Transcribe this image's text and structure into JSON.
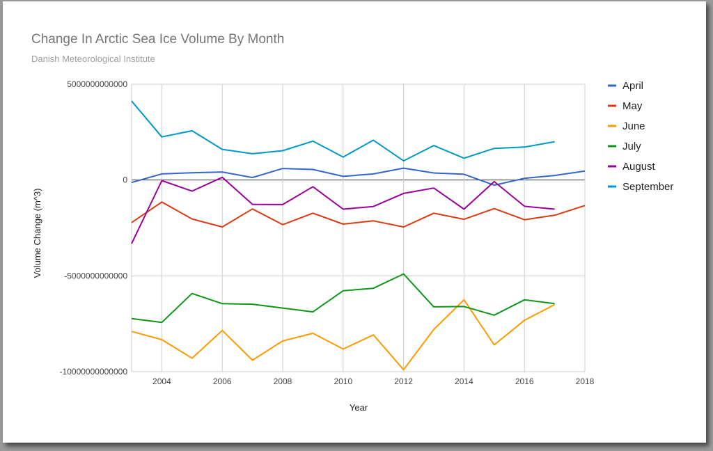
{
  "chart_data": {
    "type": "line",
    "title": "Change In Arctic Sea Ice Volume By Month",
    "subtitle": "Danish Meteorological Institute",
    "xlabel": "Year",
    "ylabel": "Volume Change (m^3)",
    "xlim": [
      2003,
      2018
    ],
    "ylim": [
      -10000000000000,
      5000000000000
    ],
    "xticks": [
      2004,
      2006,
      2008,
      2010,
      2012,
      2014,
      2016,
      2018
    ],
    "yticks": [
      {
        "value": 5000000000000,
        "label": "5000000000000"
      },
      {
        "value": 0,
        "label": "0"
      },
      {
        "value": -5000000000000,
        "label": "-5000000000000"
      },
      {
        "value": -10000000000000,
        "label": "-10000000000000"
      }
    ],
    "grid": true,
    "zero_line": true,
    "legend_position": "right",
    "series": [
      {
        "name": "April",
        "color": "#3366cc",
        "x": [
          2003,
          2004,
          2005,
          2006,
          2007,
          2008,
          2009,
          2010,
          2011,
          2012,
          2013,
          2014,
          2015,
          2016,
          2017,
          2018
        ],
        "values": [
          -130000000000.0,
          320000000000.0,
          380000000000.0,
          420000000000.0,
          130000000000.0,
          600000000000.0,
          550000000000.0,
          190000000000.0,
          320000000000.0,
          620000000000.0,
          370000000000.0,
          300000000000.0,
          -270000000000.0,
          90000000000.0,
          240000000000.0,
          470000000000.0
        ]
      },
      {
        "name": "May",
        "color": "#dc3912",
        "x": [
          2003,
          2004,
          2005,
          2006,
          2007,
          2008,
          2009,
          2010,
          2011,
          2012,
          2013,
          2014,
          2015,
          2016,
          2017,
          2018
        ],
        "values": [
          -2220000000000.0,
          -1150000000000.0,
          -2030000000000.0,
          -2450000000000.0,
          -1510000000000.0,
          -2330000000000.0,
          -1730000000000.0,
          -2300000000000.0,
          -2130000000000.0,
          -2450000000000.0,
          -1730000000000.0,
          -2050000000000.0,
          -1490000000000.0,
          -2070000000000.0,
          -1840000000000.0,
          -1330000000000.0
        ]
      },
      {
        "name": "June",
        "color": "#ff9900",
        "x": [
          2003,
          2004,
          2005,
          2006,
          2007,
          2008,
          2009,
          2010,
          2011,
          2012,
          2013,
          2014,
          2015,
          2016,
          2017
        ],
        "values": [
          -7900000000000.0,
          -8330000000000.0,
          -9300000000000.0,
          -7850000000000.0,
          -9400000000000.0,
          -8400000000000.0,
          -8000000000000.0,
          -8820000000000.0,
          -8080000000000.0,
          -9900000000000.0,
          -7800000000000.0,
          -6250000000000.0,
          -8600000000000.0,
          -7320000000000.0,
          -6500000000000.0
        ]
      },
      {
        "name": "July",
        "color": "#109618",
        "x": [
          2003,
          2004,
          2005,
          2006,
          2007,
          2008,
          2009,
          2010,
          2011,
          2012,
          2013,
          2014,
          2015,
          2016,
          2017
        ],
        "values": [
          -7230000000000.0,
          -7430000000000.0,
          -5920000000000.0,
          -6450000000000.0,
          -6480000000000.0,
          -6680000000000.0,
          -6880000000000.0,
          -5780000000000.0,
          -5650000000000.0,
          -4900000000000.0,
          -6620000000000.0,
          -6600000000000.0,
          -7050000000000.0,
          -6250000000000.0,
          -6450000000000.0
        ]
      },
      {
        "name": "August",
        "color": "#990099",
        "x": [
          2003,
          2004,
          2005,
          2006,
          2007,
          2008,
          2009,
          2010,
          2011,
          2012,
          2013,
          2014,
          2015,
          2016,
          2017
        ],
        "values": [
          -3320000000000.0,
          -30000000000.0,
          -580000000000.0,
          140000000000.0,
          -1270000000000.0,
          -1280000000000.0,
          -350000000000.0,
          -1520000000000.0,
          -1380000000000.0,
          -700000000000.0,
          -420000000000.0,
          -1520000000000.0,
          -80000000000.0,
          -1370000000000.0,
          -1520000000000.0
        ]
      },
      {
        "name": "September",
        "color": "#0099c6",
        "x": [
          2003,
          2004,
          2005,
          2006,
          2007,
          2008,
          2009,
          2010,
          2011,
          2012,
          2013,
          2014,
          2015,
          2016,
          2017
        ],
        "values": [
          4120000000000.0,
          2250000000000.0,
          2570000000000.0,
          1600000000000.0,
          1370000000000.0,
          1530000000000.0,
          2030000000000.0,
          1200000000000.0,
          2080000000000.0,
          1000000000000.0,
          1800000000000.0,
          1140000000000.0,
          1650000000000.0,
          1720000000000.0,
          2000000000000.0
        ]
      }
    ]
  }
}
